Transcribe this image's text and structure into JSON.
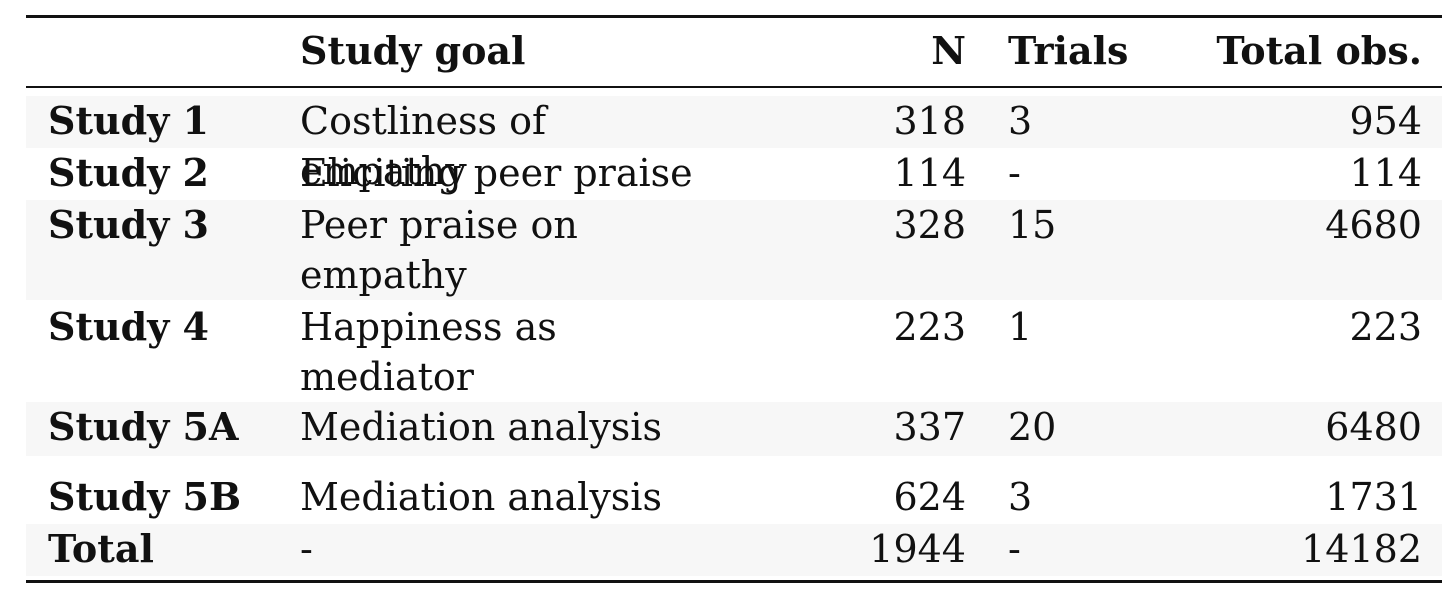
{
  "table": {
    "headers": {
      "label": "",
      "goal": "Study goal",
      "n": "N",
      "trials": "Trials",
      "total_obs": "Total obs."
    },
    "rows": [
      {
        "label": "Study 1",
        "goal": "Costliness of empathy",
        "n": "318",
        "trials": "3",
        "total_obs": "954"
      },
      {
        "label": "Study 2",
        "goal": "Eliciting peer praise",
        "n": "114",
        "trials": "-",
        "total_obs": "114"
      },
      {
        "label": "Study 3",
        "goal": "Peer praise on empathy",
        "n": "328",
        "trials": "15",
        "total_obs": "4680"
      },
      {
        "label": "Study 4",
        "goal": "Happiness as mediator",
        "n": "223",
        "trials": "1",
        "total_obs": "223"
      },
      {
        "label": "Study 5A",
        "goal": "Mediation analysis",
        "n": "337",
        "trials": "20",
        "total_obs": "6480"
      },
      {
        "label": "Study 5B",
        "goal": "Mediation analysis",
        "n": "624",
        "trials": "3",
        "total_obs": "1731"
      },
      {
        "label": "Total",
        "goal": "-",
        "n": "1944",
        "trials": "-",
        "total_obs": "14182"
      }
    ]
  }
}
